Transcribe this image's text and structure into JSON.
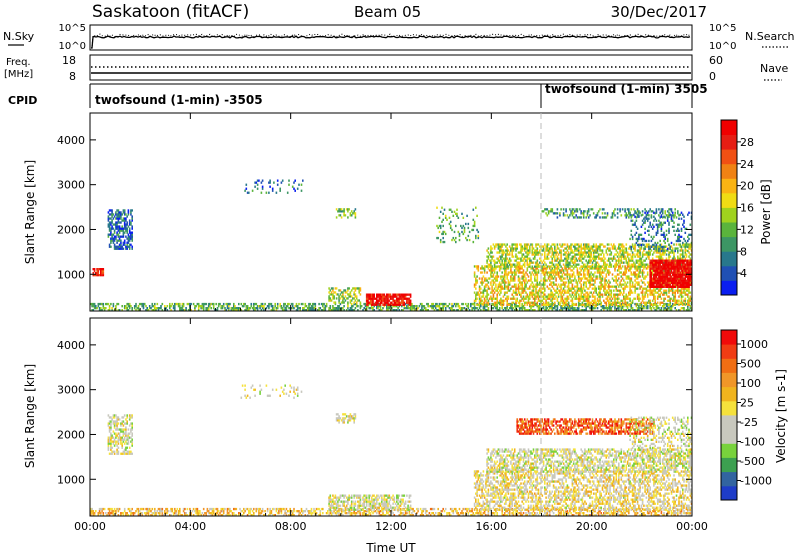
{
  "header": {
    "title": "Saskatoon (fitACF)",
    "beam": "Beam 05",
    "date": "30/Dec/2017"
  },
  "top_panels": {
    "nsky_label": "N.Sky",
    "nsky_ticks": [
      "10^5",
      "10^0"
    ],
    "nsearch_label": "N.Search",
    "nsearch_ticks": [
      "10^5",
      "10^0"
    ],
    "freq_label": "Freq.",
    "freq_unit": "[MHz]",
    "freq_ticks": [
      "18",
      "8"
    ],
    "nave_label": "Nave",
    "nave_ticks": [
      "60",
      "0"
    ],
    "cpid_label": "CPID",
    "cpid_entries": [
      {
        "text": "twofsound (1-min) -3505",
        "start_hour": 0
      },
      {
        "text": "twofsound (1-min) 3505",
        "start_hour": 18
      }
    ]
  },
  "chart_data": [
    {
      "type": "heatmap",
      "name": "power-panel",
      "ylabel": "Slant Range [km]",
      "xlabel": "Time UT",
      "xlim": [
        0,
        24
      ],
      "ylim": [
        180,
        4600
      ],
      "x_ticks": [
        "00:00",
        "04:00",
        "08:00",
        "12:00",
        "16:00",
        "20:00",
        "00:00"
      ],
      "y_ticks": [
        1000,
        2000,
        3000,
        4000
      ],
      "colorbar": {
        "label": "Power [dB]",
        "ticks": [
          "4",
          "8",
          "12",
          "16",
          "20",
          "24",
          "28"
        ],
        "colors": [
          "#0a1ef0",
          "#2050b4",
          "#28788c",
          "#3c9664",
          "#5ab43c",
          "#a0d21e",
          "#f0dc14",
          "#fab414",
          "#f08214",
          "#f05014",
          "#e61e14",
          "#f00000"
        ]
      },
      "regions": [
        {
          "t": [
            0.0,
            24.0
          ],
          "r": [
            180,
            330
          ],
          "level": 0.35,
          "density": 0.55
        },
        {
          "t": [
            0.7,
            1.7
          ],
          "r": [
            1550,
            2450
          ],
          "level": 0.18,
          "density": 0.55
        },
        {
          "t": [
            0.1,
            0.5
          ],
          "r": [
            960,
            1120
          ],
          "level": 0.9,
          "density": 0.85
        },
        {
          "t": [
            6.0,
            8.5
          ],
          "r": [
            2800,
            3100
          ],
          "level": 0.2,
          "density": 0.12
        },
        {
          "t": [
            9.8,
            10.6
          ],
          "r": [
            2250,
            2450
          ],
          "level": 0.4,
          "density": 0.5
        },
        {
          "t": [
            9.5,
            10.8
          ],
          "r": [
            350,
            700
          ],
          "level": 0.45,
          "density": 0.45
        },
        {
          "t": [
            11.0,
            12.8
          ],
          "r": [
            300,
            550
          ],
          "level": 0.95,
          "density": 0.8
        },
        {
          "t": [
            13.8,
            15.5
          ],
          "r": [
            1700,
            2500
          ],
          "level": 0.35,
          "density": 0.15
        },
        {
          "t": [
            15.3,
            24.0
          ],
          "r": [
            300,
            1200
          ],
          "level": 0.55,
          "density": 0.5
        },
        {
          "t": [
            15.8,
            24.0
          ],
          "r": [
            1150,
            1650
          ],
          "level": 0.48,
          "density": 0.55
        },
        {
          "t": [
            18.0,
            23.5
          ],
          "r": [
            2250,
            2450
          ],
          "level": 0.3,
          "density": 0.35
        },
        {
          "t": [
            21.5,
            24.0
          ],
          "r": [
            1500,
            2400
          ],
          "level": 0.22,
          "density": 0.25
        },
        {
          "t": [
            22.3,
            24.0
          ],
          "r": [
            700,
            1300
          ],
          "level": 0.98,
          "density": 0.9
        }
      ]
    },
    {
      "type": "heatmap",
      "name": "velocity-panel",
      "ylabel": "Slant Range [km]",
      "xlabel": "Time UT",
      "xlim": [
        0,
        24
      ],
      "ylim": [
        180,
        4600
      ],
      "x_ticks": [
        "00:00",
        "04:00",
        "08:00",
        "12:00",
        "16:00",
        "20:00",
        "00:00"
      ],
      "y_ticks": [
        1000,
        2000,
        3000,
        4000
      ],
      "colorbar": {
        "label": "Velocity [m s-1]",
        "ticks": [
          "1000",
          "500",
          "100",
          "25",
          "-25",
          "-100",
          "-500",
          "-1000"
        ],
        "colors": [
          "#1e3cc8",
          "#3264a0",
          "#3ca050",
          "#78d23c",
          "#c8c8be",
          "#c8c8be",
          "#f5e13c",
          "#f0b41e",
          "#f09628",
          "#f06e14",
          "#f03c14",
          "#f00a0a"
        ]
      },
      "regions": [
        {
          "t": [
            0.0,
            24.0
          ],
          "r": [
            180,
            330
          ],
          "level": 0.6,
          "density": 0.5
        },
        {
          "t": [
            0.7,
            1.7
          ],
          "r": [
            1550,
            2450
          ],
          "level": 0.45,
          "density": 0.55
        },
        {
          "t": [
            6.0,
            8.5
          ],
          "r": [
            2800,
            3100
          ],
          "level": 0.45,
          "density": 0.12
        },
        {
          "t": [
            9.8,
            10.6
          ],
          "r": [
            2250,
            2450
          ],
          "level": 0.45,
          "density": 0.5
        },
        {
          "t": [
            9.5,
            12.8
          ],
          "r": [
            300,
            650
          ],
          "level": 0.45,
          "density": 0.6
        },
        {
          "t": [
            15.3,
            24.0
          ],
          "r": [
            300,
            1200
          ],
          "level": 0.5,
          "density": 0.5
        },
        {
          "t": [
            15.8,
            24.0
          ],
          "r": [
            1150,
            1650
          ],
          "level": 0.45,
          "density": 0.55
        },
        {
          "t": [
            17.0,
            22.5
          ],
          "r": [
            2000,
            2350
          ],
          "level": 0.82,
          "density": 0.65
        },
        {
          "t": [
            21.5,
            24.0
          ],
          "r": [
            1500,
            2400
          ],
          "level": 0.45,
          "density": 0.3
        }
      ]
    }
  ]
}
